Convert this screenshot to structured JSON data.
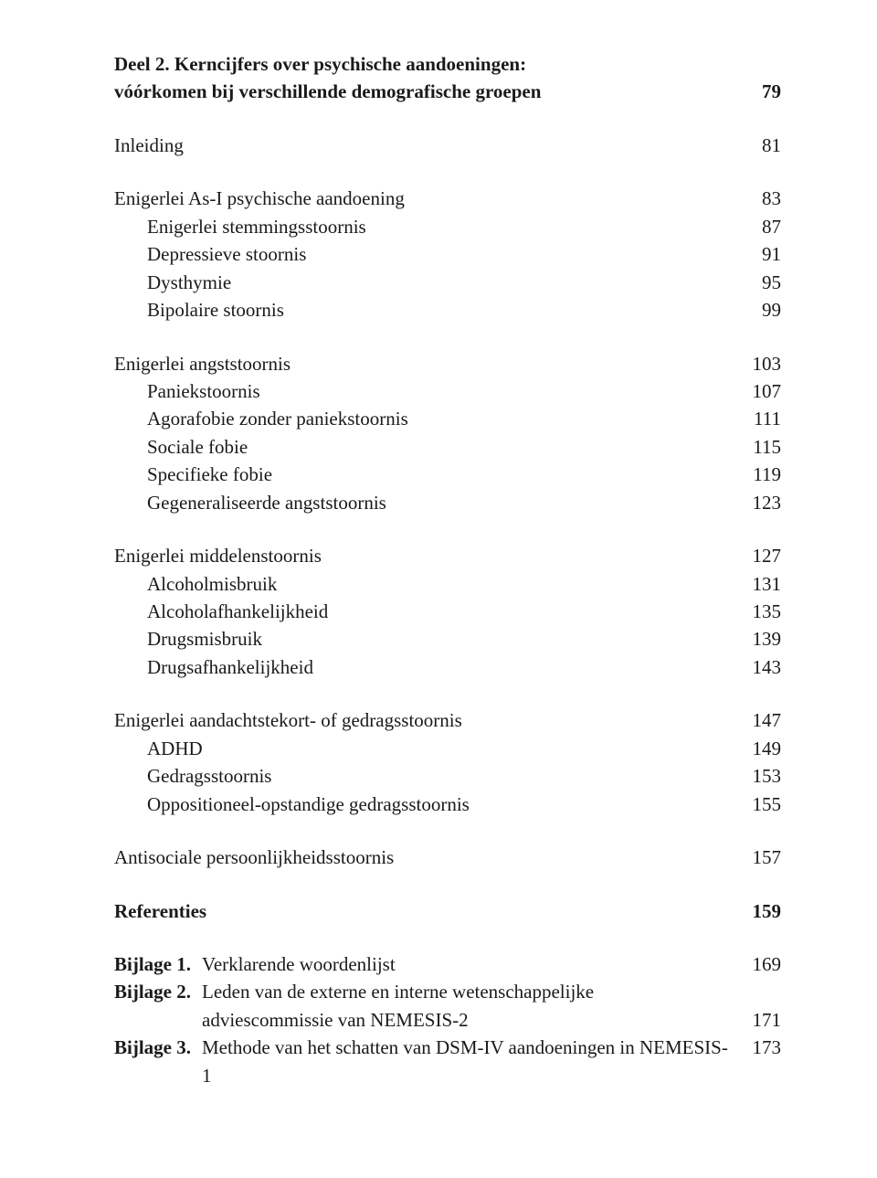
{
  "colors": {
    "text": "#1a1a1a",
    "background": "#ffffff"
  },
  "typography": {
    "base_fontsize_pt": 16,
    "line_height": 1.45,
    "font_family": "Georgia / serif"
  },
  "deel2": {
    "title_line1": "Deel 2. Kerncijfers over psychische aandoeningen:",
    "title_line2": "vóórkomen bij verschillende demografische groepen",
    "page": "79"
  },
  "inleiding": {
    "label": "Inleiding",
    "page": "81"
  },
  "sectionA": {
    "heading": {
      "label": "Enigerlei As-I psychische aandoening",
      "page": "83"
    },
    "items": [
      {
        "label": "Enigerlei stemmingsstoornis",
        "page": "87"
      },
      {
        "label": "Depressieve stoornis",
        "page": "91"
      },
      {
        "label": "Dysthymie",
        "page": "95"
      },
      {
        "label": "Bipolaire stoornis",
        "page": "99"
      }
    ]
  },
  "sectionB": {
    "heading": {
      "label": "Enigerlei angststoornis",
      "page": "103"
    },
    "items": [
      {
        "label": "Paniekstoornis",
        "page": "107"
      },
      {
        "label": "Agorafobie zonder paniekstoornis",
        "page": "111"
      },
      {
        "label": "Sociale fobie",
        "page": "115"
      },
      {
        "label": "Specifieke fobie",
        "page": "119"
      },
      {
        "label": "Gegeneraliseerde angststoornis",
        "page": "123"
      }
    ]
  },
  "sectionC": {
    "heading": {
      "label": "Enigerlei middelenstoornis",
      "page": "127"
    },
    "items": [
      {
        "label": "Alcoholmisbruik",
        "page": "131"
      },
      {
        "label": "Alcoholafhankelijkheid",
        "page": "135"
      },
      {
        "label": "Drugsmisbruik",
        "page": "139"
      },
      {
        "label": "Drugsafhankelijkheid",
        "page": "143"
      }
    ]
  },
  "sectionD": {
    "heading": {
      "label": "Enigerlei aandachtstekort- of gedragsstoornis",
      "page": "147"
    },
    "items": [
      {
        "label": "ADHD",
        "page": "149"
      },
      {
        "label": "Gedragsstoornis",
        "page": "153"
      },
      {
        "label": "Oppositioneel-opstandige gedragsstoornis",
        "page": "155"
      }
    ]
  },
  "antisociale": {
    "label": "Antisociale persoonlijkheidsstoornis",
    "page": "157"
  },
  "referenties": {
    "label": "Referenties",
    "page": "159"
  },
  "bijlagen": {
    "b1": {
      "prefix": "Bijlage 1.",
      "text": "Verklarende woordenlijst",
      "page": "169"
    },
    "b2": {
      "prefix": "Bijlage 2.",
      "text1": "Leden van de externe en interne wetenschappelijke",
      "text2": "adviescommissie van NEMESIS-2",
      "page": "171"
    },
    "b3": {
      "prefix": "Bijlage 3.",
      "text": "Methode van het schatten van DSM-IV aandoeningen in NEMESIS-1",
      "page": "173"
    }
  }
}
